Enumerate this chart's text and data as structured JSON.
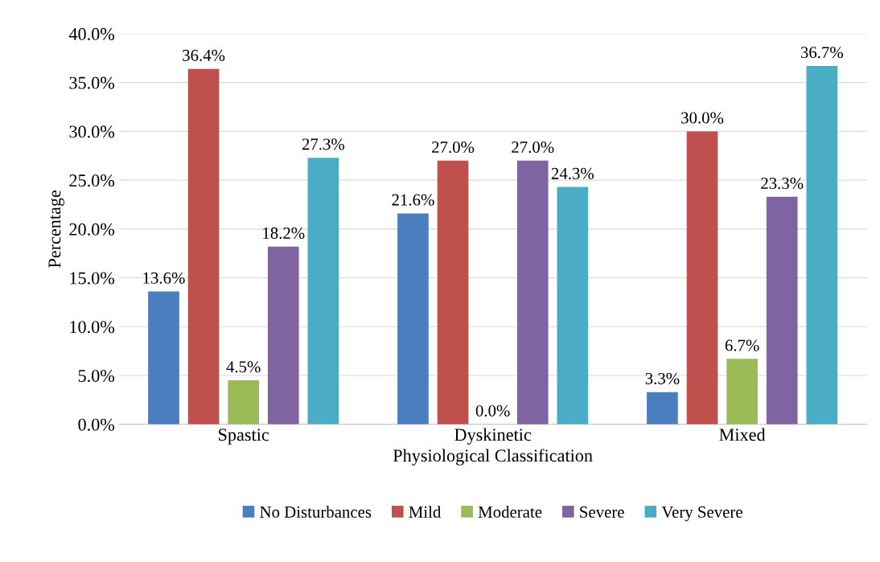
{
  "chart_data": {
    "type": "bar",
    "xlabel": "Physiological Classification",
    "ylabel": "Percentage",
    "categories": [
      "Spastic",
      "Dyskinetic",
      "Mixed"
    ],
    "series": [
      {
        "name": "No Disturbances",
        "color": "#4a7ebf",
        "values": [
          13.6,
          21.6,
          3.3
        ],
        "value_labels": [
          "13.6%",
          "21.6%",
          "3.3%"
        ]
      },
      {
        "name": "Mild",
        "color": "#c0504d",
        "values": [
          36.4,
          27.0,
          30.0
        ],
        "value_labels": [
          "36.4%",
          "27.0%",
          "30.0%"
        ]
      },
      {
        "name": "Moderate",
        "color": "#9bbb59",
        "values": [
          4.5,
          0.0,
          6.7
        ],
        "value_labels": [
          "4.5%",
          "0.0%",
          "6.7%"
        ]
      },
      {
        "name": "Severe",
        "color": "#8064a2",
        "values": [
          18.2,
          27.0,
          23.3
        ],
        "value_labels": [
          "18.2%",
          "27.0%",
          "23.3%"
        ]
      },
      {
        "name": "Very Severe",
        "color": "#4bacc6",
        "values": [
          27.3,
          24.3,
          36.7
        ],
        "value_labels": [
          "27.3%",
          "24.3%",
          "36.7%"
        ]
      }
    ],
    "ylim": [
      0,
      40
    ],
    "yticks": [
      {
        "value": 0,
        "label": "0.0%"
      },
      {
        "value": 5,
        "label": "5.0%"
      },
      {
        "value": 10,
        "label": "10.0%"
      },
      {
        "value": 15,
        "label": "15.0%"
      },
      {
        "value": 20,
        "label": "20.0%"
      },
      {
        "value": 25,
        "label": "25.0%"
      },
      {
        "value": 30,
        "label": "30.0%"
      },
      {
        "value": 35,
        "label": "35.0%"
      },
      {
        "value": 40,
        "label": "40.0%"
      }
    ],
    "grid": "y",
    "legend": "bottom"
  }
}
